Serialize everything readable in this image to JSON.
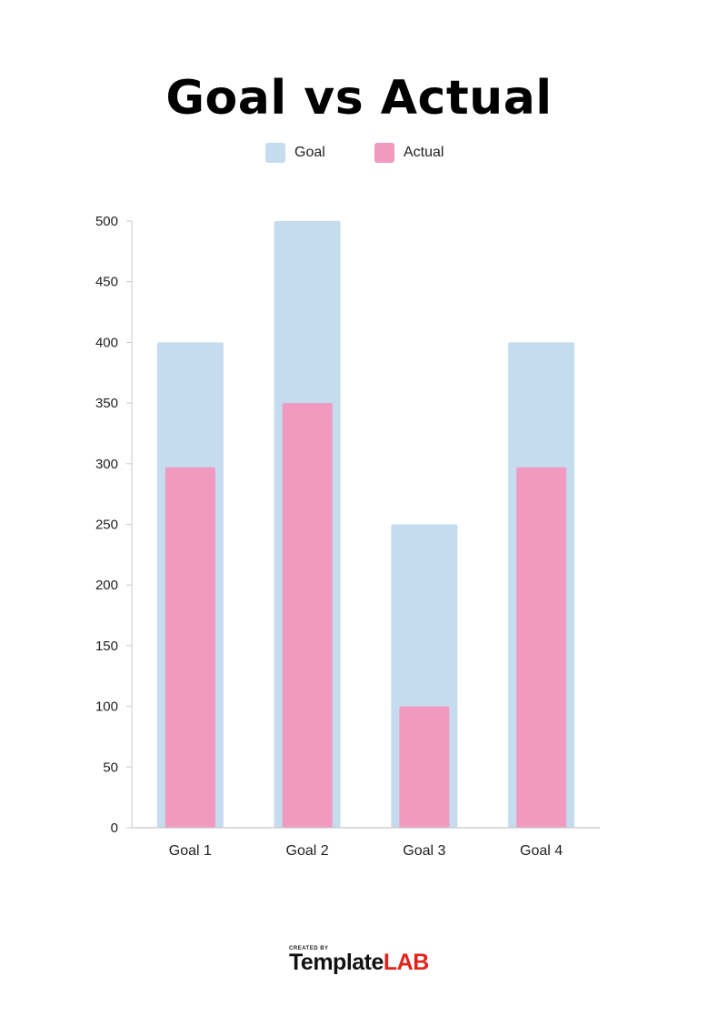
{
  "chart_data": {
    "type": "bar",
    "title": "Goal vs Actual",
    "categories": [
      "Goal 1",
      "Goal 2",
      "Goal 3",
      "Goal 4"
    ],
    "series": [
      {
        "name": "Goal",
        "values": [
          400,
          500,
          250,
          400
        ],
        "color": "#c5dcee"
      },
      {
        "name": "Actual",
        "values": [
          297,
          350,
          100,
          297
        ],
        "color": "#f19ac0"
      }
    ],
    "ylim": [
      0,
      500
    ],
    "yticks": [
      "0",
      "50",
      "100",
      "150",
      "200",
      "250",
      "300",
      "350",
      "400",
      "450",
      "500"
    ],
    "xlabel": "",
    "ylabel": "",
    "legend": "top-center",
    "grid": false,
    "overlapped_bars": true
  },
  "branding": {
    "created_by": "CREATED BY",
    "name_prefix": "Template",
    "name_suffix": "LAB",
    "accent_color": "#e2231a"
  }
}
